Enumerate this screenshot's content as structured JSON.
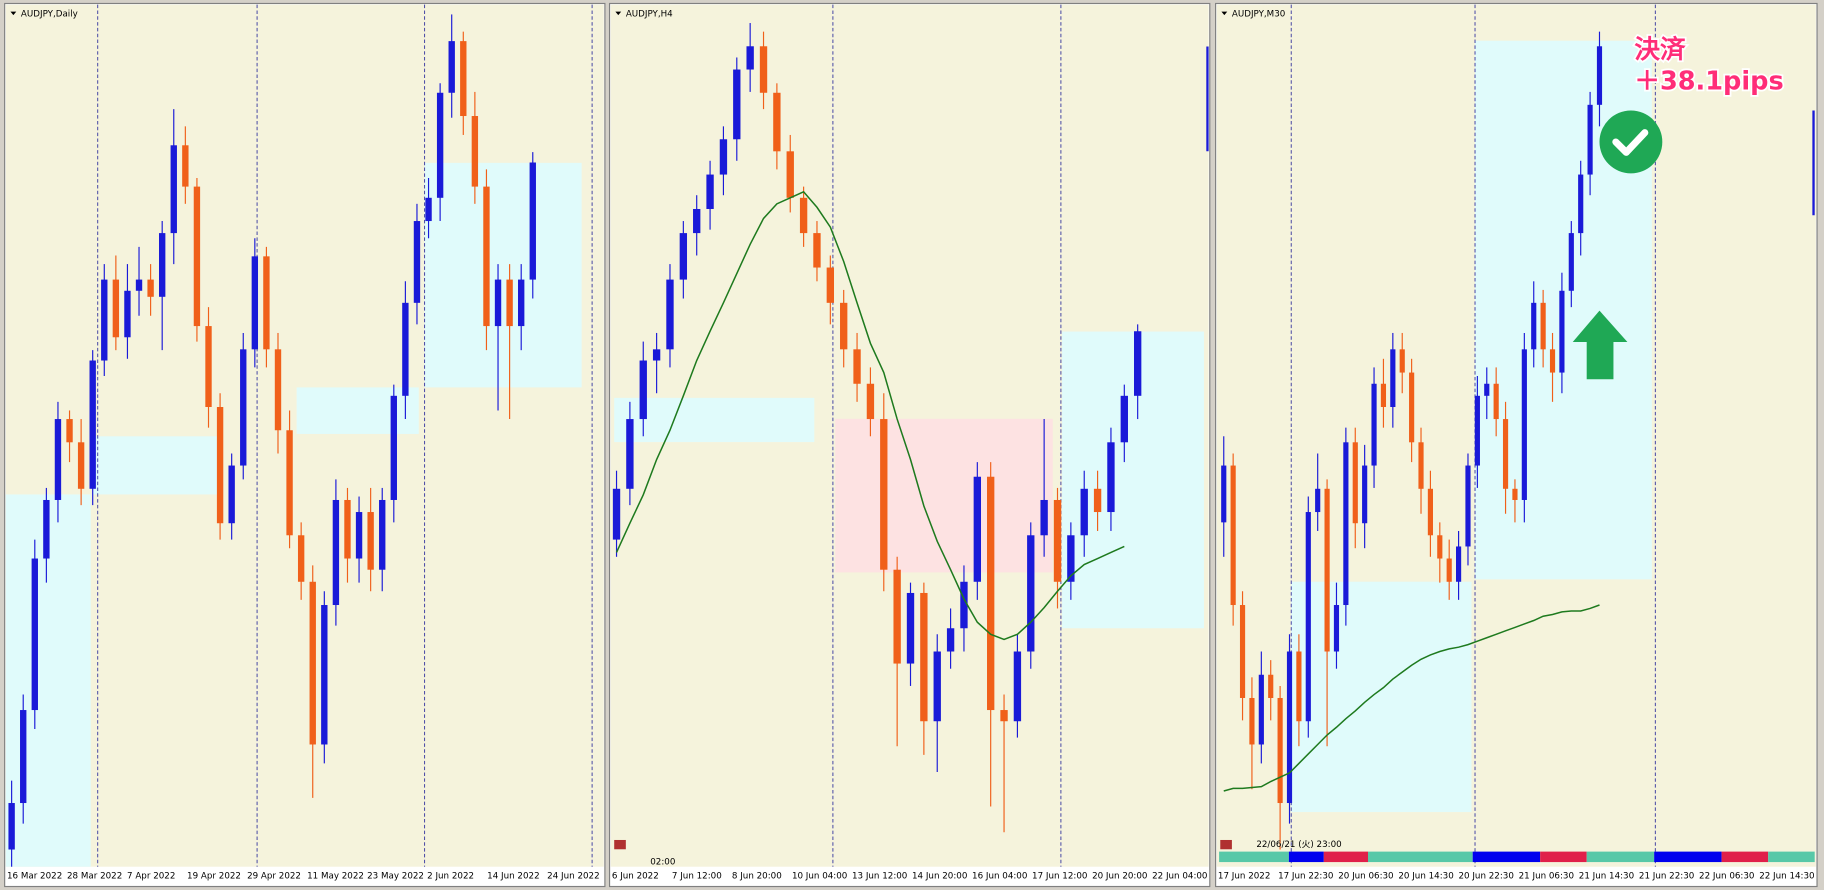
{
  "panels": [
    {
      "type": "candlestick",
      "title": "AUDJPY,Daily",
      "up_color": "#1a1ad8",
      "down_color": "#f0601a",
      "ylim": [
        0,
        100
      ],
      "x_labels": [
        "16 Mar 2022",
        "28 Mar 2022",
        "7 Apr 2022",
        "19 Apr 2022",
        "29 Apr 2022",
        "11 May 2022",
        "23 May 2022",
        "2 Jun 2022",
        "14 Jun 2022",
        "24 Jun 2022"
      ],
      "candles": [
        [
          2,
          10,
          0,
          7.4
        ],
        [
          7.4,
          20,
          5,
          18.2
        ],
        [
          18.2,
          38,
          16,
          35.8
        ],
        [
          35.8,
          44,
          33,
          42.6
        ],
        [
          42.6,
          54,
          40,
          52
        ],
        [
          52,
          53,
          47,
          49.3
        ],
        [
          49.3,
          52,
          42,
          43.9
        ],
        [
          43.9,
          60,
          42,
          58.8
        ],
        [
          58.8,
          70,
          57,
          68.2
        ],
        [
          68.2,
          71,
          60,
          61.5
        ],
        [
          61.5,
          70,
          59,
          66.9
        ],
        [
          66.9,
          72,
          64,
          68.2
        ],
        [
          68.2,
          70,
          64,
          66.2
        ],
        [
          66.2,
          75,
          60,
          73.6
        ],
        [
          73.6,
          88,
          70,
          83.8
        ],
        [
          83.8,
          86,
          77,
          79
        ],
        [
          79,
          80,
          61,
          62.8
        ],
        [
          62.8,
          65,
          51,
          53.4
        ],
        [
          53.4,
          55,
          38,
          39.9
        ],
        [
          39.9,
          48,
          38,
          46.6
        ],
        [
          46.6,
          62,
          45,
          60.1
        ],
        [
          60.1,
          73,
          58,
          70.9
        ],
        [
          70.9,
          72,
          58,
          60.1
        ],
        [
          60.1,
          62,
          48,
          50.7
        ],
        [
          50.7,
          53,
          37,
          38.5
        ],
        [
          38.5,
          40,
          31,
          33.1
        ],
        [
          33.1,
          35,
          8,
          14.2
        ],
        [
          14.2,
          32,
          12,
          30.4
        ],
        [
          30.4,
          45,
          28,
          42.6
        ],
        [
          42.6,
          44,
          33,
          35.8
        ],
        [
          35.8,
          43,
          33,
          41.2
        ],
        [
          41.2,
          44,
          32,
          34.5
        ],
        [
          34.5,
          44,
          32,
          42.6
        ],
        [
          42.6,
          56,
          40,
          54.7
        ],
        [
          54.7,
          68,
          52,
          65.5
        ],
        [
          65.5,
          77,
          63,
          75
        ],
        [
          75,
          80,
          73,
          77.7
        ],
        [
          77.7,
          91,
          75,
          89.9
        ],
        [
          89.9,
          99,
          87,
          95.9
        ],
        [
          95.9,
          97,
          85,
          87.2
        ],
        [
          87.2,
          90,
          77,
          79
        ],
        [
          79,
          81,
          60,
          62.8
        ],
        [
          62.8,
          70,
          53,
          68.2
        ],
        [
          68.2,
          70,
          52,
          62.8
        ],
        [
          62.8,
          70,
          60,
          68.2
        ],
        [
          68.2,
          83,
          66,
          81.8
        ]
      ]
    },
    {
      "type": "candlestick",
      "title": "AUDJPY,H4",
      "up_color": "#1a1ad8",
      "down_color": "#f0601a",
      "ma_color": "#1e7a1e",
      "ylim": [
        0,
        100
      ],
      "x_labels": [
        "6 Jun 2022",
        "7 Jun 12:00",
        "8 Jun 20:00",
        "10 Jun 04:00",
        "13 Jun 12:00",
        "14 Jun 20:00",
        "16 Jun 04:00",
        "17 Jun 12:00",
        "20 Jun 20:00",
        "22 Jun 04:00"
      ],
      "time": "02:00",
      "candles": [
        [
          38,
          46,
          36,
          43.9
        ],
        [
          43.9,
          54,
          42,
          52
        ],
        [
          52,
          61,
          50,
          58.8
        ],
        [
          58.8,
          62,
          55,
          60.1
        ],
        [
          60.1,
          70,
          58,
          68.2
        ],
        [
          68.2,
          75,
          66,
          73.6
        ],
        [
          73.6,
          78,
          71,
          76.4
        ],
        [
          76.4,
          82,
          74,
          80.4
        ],
        [
          80.4,
          86,
          78,
          84.5
        ],
        [
          84.5,
          94,
          82,
          92.6
        ],
        [
          92.6,
          98,
          90,
          95.3
        ],
        [
          95.3,
          97,
          88,
          89.9
        ],
        [
          89.9,
          91,
          81,
          83.1
        ],
        [
          83.1,
          85,
          76,
          77.7
        ],
        [
          77.7,
          79,
          72,
          73.6
        ],
        [
          73.6,
          75,
          68,
          69.6
        ],
        [
          69.6,
          71,
          63,
          65.5
        ],
        [
          65.5,
          67,
          58,
          60.1
        ],
        [
          60.1,
          62,
          54,
          56.1
        ],
        [
          56.1,
          58,
          50,
          52
        ],
        [
          52,
          55,
          32,
          34.5
        ],
        [
          34.5,
          36,
          14,
          23.6
        ],
        [
          23.6,
          33,
          21,
          31.8
        ],
        [
          31.8,
          33,
          13,
          16.9
        ],
        [
          16.9,
          27,
          11,
          25
        ],
        [
          25,
          30,
          23,
          27.7
        ],
        [
          27.7,
          35,
          25,
          33.1
        ],
        [
          33.1,
          47,
          31,
          45.3
        ],
        [
          45.3,
          47,
          7,
          18.2
        ],
        [
          18.2,
          20,
          4,
          16.9
        ],
        [
          16.9,
          27,
          15,
          25
        ],
        [
          25,
          40,
          23,
          38.5
        ],
        [
          38.5,
          52,
          36,
          42.6
        ],
        [
          42.6,
          44,
          30,
          33.1
        ],
        [
          33.1,
          40,
          31,
          38.5
        ],
        [
          38.5,
          46,
          36,
          43.9
        ],
        [
          43.9,
          46,
          39,
          41.2
        ],
        [
          41.2,
          51,
          39,
          49.3
        ],
        [
          49.3,
          56,
          47,
          54.7
        ],
        [
          54.7,
          63,
          52,
          62.2
        ]
      ],
      "ma": [
        36.5,
        39.9,
        43.2,
        47.3,
        50.7,
        54.7,
        58.8,
        62.2,
        65.5,
        68.9,
        72.3,
        75.3,
        77,
        77.7,
        78.4,
        76.6,
        74.3,
        70.3,
        65.5,
        60.8,
        57.4,
        52,
        47.3,
        41.9,
        37.8,
        34.5,
        31.1,
        28.4,
        27,
        26.4,
        27,
        28.4,
        30.1,
        32,
        33.8,
        35.1,
        35.8,
        36.5,
        37.2,
        null
      ]
    },
    {
      "type": "candlestick",
      "title": "AUDJPY,M30",
      "up_color": "#1a1ad8",
      "down_color": "#f0601a",
      "ma_color": "#1e7a1e",
      "ylim": [
        0,
        100
      ],
      "x_labels": [
        "17 Jun 2022",
        "17 Jun 22:30",
        "20 Jun 06:30",
        "20 Jun 14:30",
        "20 Jun 22:30",
        "21 Jun 06:30",
        "21 Jun 14:30",
        "21 Jun 22:30",
        "22 Jun 06:30",
        "22 Jun 14:30"
      ],
      "time": "22/06/21 (火) 23:00",
      "candles": [
        [
          40,
          50,
          36,
          46.6
        ],
        [
          46.6,
          48,
          28,
          30.4
        ],
        [
          30.4,
          32,
          17,
          19.6
        ],
        [
          19.6,
          22,
          9,
          14.2
        ],
        [
          14.2,
          25,
          12,
          22.3
        ],
        [
          22.3,
          24,
          17,
          19.6
        ],
        [
          19.6,
          21,
          2,
          7.4
        ],
        [
          7.4,
          27,
          5,
          25
        ],
        [
          25,
          27,
          14,
          16.9
        ],
        [
          16.9,
          43,
          15,
          41.2
        ],
        [
          41.2,
          48,
          39,
          43.9
        ],
        [
          43.9,
          45,
          14,
          25
        ],
        [
          25,
          33,
          23,
          30.4
        ],
        [
          30.4,
          51,
          28,
          49.3
        ],
        [
          49.3,
          51,
          37,
          39.9
        ],
        [
          39.9,
          49,
          37,
          46.6
        ],
        [
          46.6,
          58,
          44,
          56.1
        ],
        [
          56.1,
          59,
          51,
          53.4
        ],
        [
          53.4,
          62,
          51,
          60.1
        ],
        [
          60.1,
          62,
          55,
          57.4
        ],
        [
          57.4,
          59,
          47,
          49.3
        ],
        [
          49.3,
          51,
          41,
          43.9
        ],
        [
          43.9,
          46,
          36,
          38.5
        ],
        [
          38.5,
          40,
          33,
          35.8
        ],
        [
          35.8,
          38,
          31,
          33.1
        ],
        [
          33.1,
          39,
          31,
          37.2
        ],
        [
          37.2,
          48,
          35,
          46.6
        ],
        [
          46.6,
          57,
          44,
          54.7
        ],
        [
          54.7,
          58,
          52,
          56.1
        ],
        [
          56.1,
          58,
          50,
          52
        ],
        [
          52,
          54,
          41,
          43.9
        ],
        [
          43.9,
          45,
          40,
          42.6
        ],
        [
          42.6,
          62,
          40,
          60.1
        ],
        [
          60.1,
          68,
          58,
          65.5
        ],
        [
          65.5,
          67,
          58,
          60.1
        ],
        [
          60.1,
          62,
          54,
          57.4
        ],
        [
          57.4,
          69,
          55,
          66.9
        ],
        [
          66.9,
          75,
          65,
          73.6
        ],
        [
          73.6,
          82,
          71,
          80.4
        ],
        [
          80.4,
          90,
          78,
          88.5
        ],
        [
          88.5,
          97,
          86,
          95.3
        ]
      ],
      "ma": [
        8.8,
        9.1,
        9.1,
        9.2,
        9.3,
        9.9,
        10.4,
        10.9,
        12,
        13.1,
        14.2,
        15.3,
        16.2,
        17.2,
        18.1,
        19.1,
        20,
        20.8,
        21.8,
        22.6,
        23.4,
        24.1,
        24.6,
        25,
        25.3,
        25.5,
        25.8,
        26.2,
        26.6,
        27,
        27.4,
        27.8,
        28.2,
        28.6,
        29.1,
        29.3,
        29.6,
        29.7,
        29.7,
        30,
        30.4
      ]
    }
  ],
  "annotation": {
    "title": "決済",
    "result": "＋38.1pips"
  }
}
